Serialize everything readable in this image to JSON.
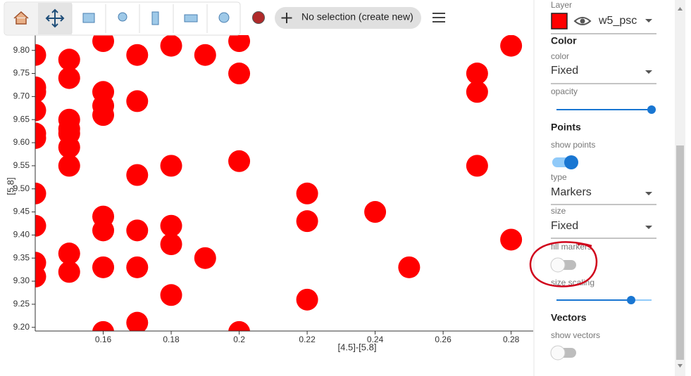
{
  "toolbar": {
    "selection": "No selection (create new)"
  },
  "chart_data": {
    "type": "scatter",
    "x_label": "[4.5]-[5.8]",
    "y_label": "[5.8]",
    "color": "#ff0000",
    "x": [
      0.14,
      0.14,
      0.14,
      0.14,
      0.14,
      0.14,
      0.14,
      0.14,
      0.14,
      0.14,
      0.15,
      0.15,
      0.15,
      0.15,
      0.15,
      0.15,
      0.15,
      0.15,
      0.15,
      0.16,
      0.16,
      0.16,
      0.16,
      0.16,
      0.16,
      0.16,
      0.16,
      0.17,
      0.17,
      0.17,
      0.17,
      0.17,
      0.17,
      0.18,
      0.18,
      0.18,
      0.18,
      0.18,
      0.19,
      0.19,
      0.2,
      0.2,
      0.2,
      0.2,
      0.22,
      0.22,
      0.22,
      0.24,
      0.25,
      0.27,
      0.27,
      0.27,
      0.28,
      0.28
    ],
    "values": [
      9.79,
      9.72,
      9.71,
      9.67,
      9.62,
      9.61,
      9.49,
      9.42,
      9.34,
      9.31,
      9.78,
      9.74,
      9.65,
      9.63,
      9.62,
      9.59,
      9.55,
      9.36,
      9.32,
      9.82,
      9.71,
      9.68,
      9.66,
      9.44,
      9.41,
      9.33,
      9.19,
      9.79,
      9.69,
      9.53,
      9.41,
      9.33,
      9.21,
      9.81,
      9.55,
      9.42,
      9.38,
      9.27,
      9.79,
      9.35,
      9.82,
      9.75,
      9.56,
      9.19,
      9.49,
      9.43,
      9.26,
      9.45,
      9.33,
      9.75,
      9.71,
      9.55,
      9.81,
      9.39
    ],
    "xlim": [
      0.14,
      0.2865
    ],
    "ylim": [
      9.192,
      9.833
    ],
    "xticks": [
      0.16,
      0.18,
      0.2,
      0.22,
      0.24,
      0.26,
      0.28
    ],
    "yticks": [
      {
        "value": 9.2,
        "label": "9.20"
      },
      9.25,
      {
        "value": 9.3,
        "label": "9.30"
      },
      9.35,
      {
        "value": 9.4,
        "label": "9.40"
      },
      9.45,
      {
        "value": 9.5,
        "label": "9.50"
      },
      9.55,
      {
        "value": 9.6,
        "label": "9.60"
      },
      9.65,
      {
        "value": 9.7,
        "label": "9.70"
      },
      9.75,
      {
        "value": 9.8,
        "label": "9.80"
      }
    ]
  },
  "panel": {
    "layer_label": "Layer",
    "layer_name": "w5_psc",
    "color_section": "Color",
    "color_label": "color",
    "color_value": "Fixed",
    "opacity_label": "opacity",
    "points_section": "Points",
    "show_points_label": "show points",
    "type_label": "type",
    "type_value": "Markers",
    "size_label": "size",
    "size_value": "Fixed",
    "fill_markers_label": "fill markers",
    "size_scaling_label": "size scaling",
    "vectors_section": "Vectors",
    "show_vectors_label": "show vectors"
  }
}
